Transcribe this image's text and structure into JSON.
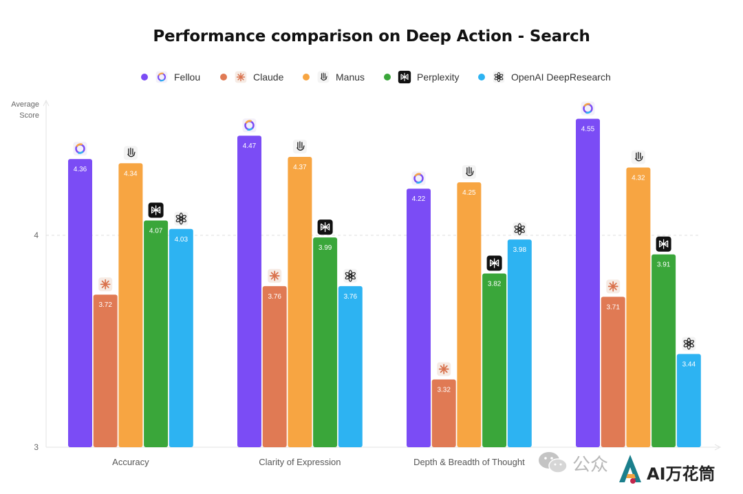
{
  "chart_data": {
    "type": "bar",
    "title": "Performance comparison on Deep Action - Search",
    "ylabel": "Average\nScore",
    "xlabel": "",
    "ylim": [
      3,
      5
    ],
    "yticks": [
      3,
      4
    ],
    "grid": "dashed line at 4",
    "legend_placement": "top-center",
    "categories": [
      "Accuracy",
      "Clarity of Expression",
      "Depth & Breadth of Thought",
      ""
    ],
    "series": [
      {
        "name": "Fellou",
        "color": "#7B4CF5",
        "logo": "fellou-logo-icon",
        "values": [
          4.36,
          4.47,
          4.22,
          4.55
        ]
      },
      {
        "name": "Claude",
        "color": "#E07A54",
        "logo": "claude-logo-icon",
        "values": [
          3.72,
          3.76,
          3.32,
          3.71
        ]
      },
      {
        "name": "Manus",
        "color": "#F7A542",
        "logo": "manus-logo-icon",
        "values": [
          4.34,
          4.37,
          4.25,
          4.32
        ]
      },
      {
        "name": "Perplexity",
        "color": "#3AA63A",
        "logo": "perplexity-logo-icon",
        "values": [
          4.07,
          3.99,
          3.82,
          3.91
        ]
      },
      {
        "name": "OpenAI DeepResearch",
        "color": "#2DB3F2",
        "logo": "openai-logo-icon",
        "values": [
          4.03,
          3.76,
          3.98,
          3.44
        ]
      }
    ]
  },
  "watermark": {
    "gzh_text": "公众",
    "brand_text": "AI万花筒"
  }
}
